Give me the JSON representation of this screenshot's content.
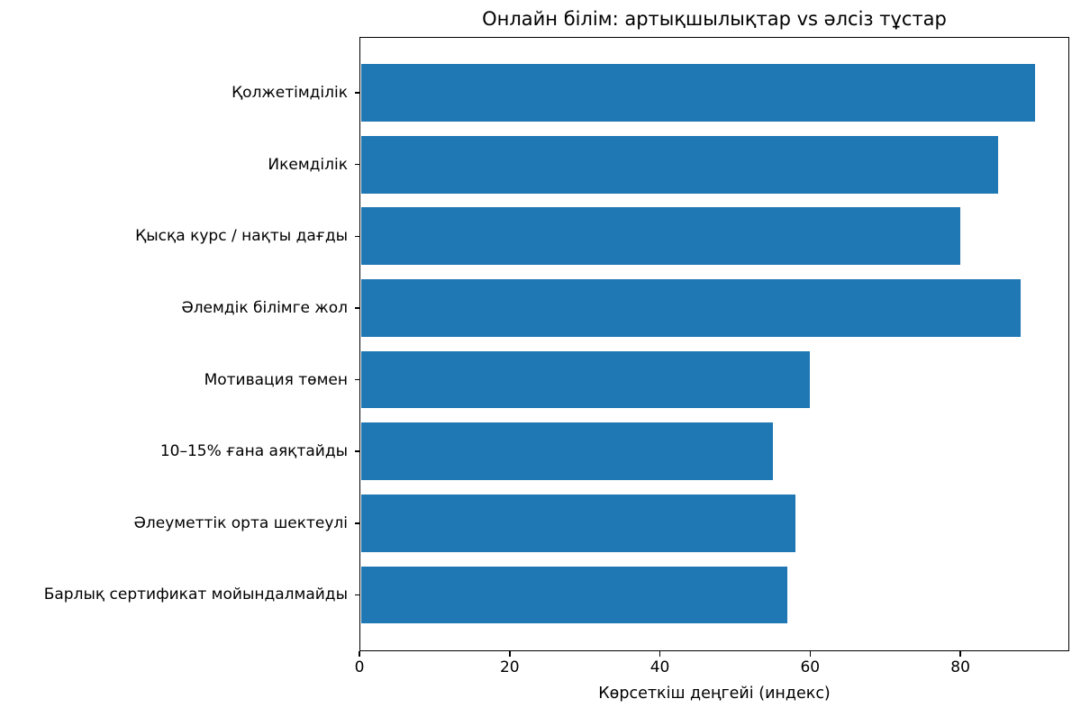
{
  "chart_data": {
    "type": "bar",
    "orientation": "horizontal",
    "title": "Онлайн білім: артықшылықтар vs әлсіз тұстар",
    "xlabel": "Көрсеткіш деңгейі (индекс)",
    "ylabel": "",
    "categories": [
      "Қолжетімділік",
      "Икемділік",
      "Қысқа курс / нақты дағды",
      "Әлемдік білімге жол",
      "Мотивация төмен",
      "10–15% ғана аяқтайды",
      "Әлеуметтік орта шектеулі",
      "Барлық сертификат мойындалмайды"
    ],
    "values": [
      90,
      85,
      80,
      88,
      60,
      55,
      58,
      57
    ],
    "xticks": [
      0,
      20,
      40,
      60,
      80
    ],
    "xlim": [
      0,
      94.5
    ],
    "bar_color": "#1f77b4",
    "grid": false,
    "legend": null
  }
}
